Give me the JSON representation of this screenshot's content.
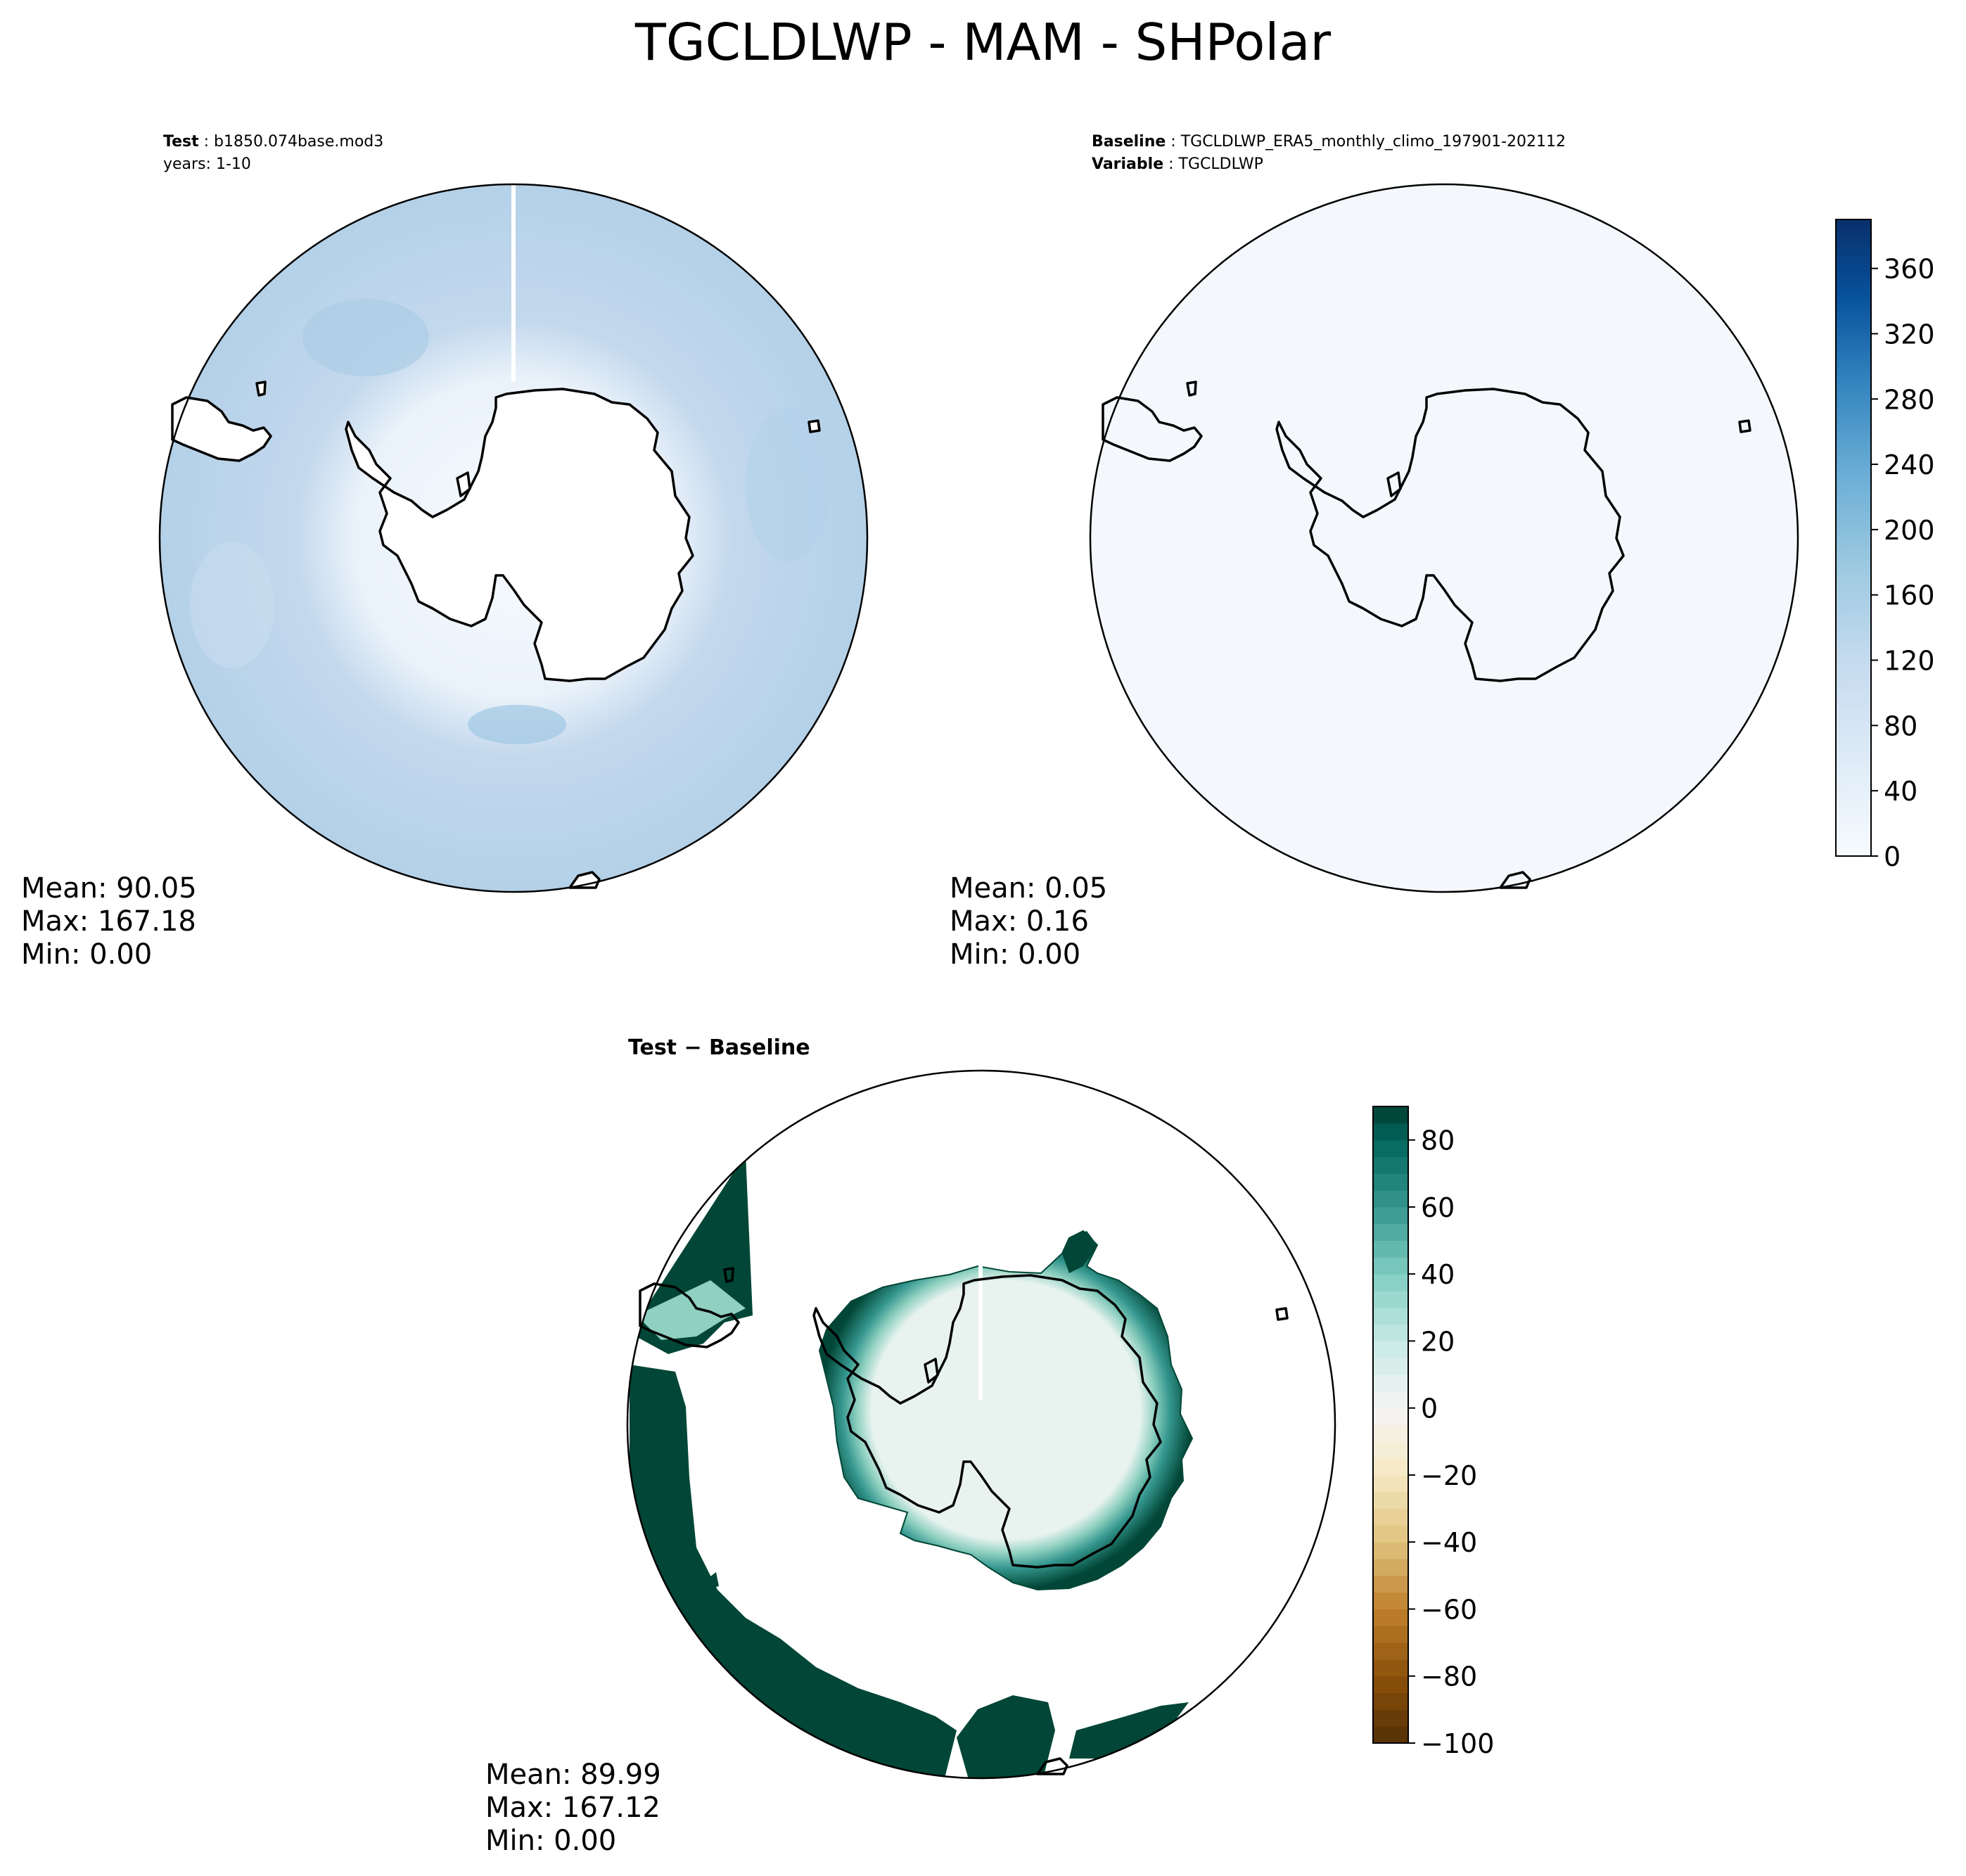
{
  "title": "TGCLDLWP - MAM - SHPolar",
  "test_panel": {
    "case_label": "Test",
    "case_value": "b1850.074base.mod3",
    "years_text": "years: 1-10",
    "stats": {
      "mean": "Mean: 90.05",
      "max": "Max: 167.18",
      "min": "Min:  0.00"
    }
  },
  "baseline_panel": {
    "case_label": "Baseline",
    "case_value": "TGCLDLWP_ERA5_monthly_climo_197901-202112",
    "variable_label": "Variable",
    "variable_value": "TGCLDLWP",
    "stats": {
      "mean": "Mean:  0.05",
      "max": "Max:  0.16",
      "min": "Min:  0.00"
    }
  },
  "diff_panel": {
    "title": "Test − Baseline",
    "stats": {
      "mean": "Mean: 89.99",
      "max": "Max: 167.12",
      "min": "Min:  0.00"
    }
  },
  "colorbar_main": {
    "colormap": "Blues",
    "range": [
      0,
      390
    ],
    "ticks": [
      "0",
      "40",
      "80",
      "120",
      "160",
      "200",
      "240",
      "280",
      "320",
      "360"
    ]
  },
  "colorbar_diff": {
    "colormap": "BrBG",
    "range": [
      -100,
      90
    ],
    "ticks": [
      "−100",
      "−80",
      "−60",
      "−40",
      "−20",
      "0",
      "20",
      "40",
      "60",
      "80"
    ]
  },
  "colors": {
    "test_field": "#c3d8ed",
    "baseline_field": "#f4f8fc",
    "diff_positive": "#014636",
    "diff_near_zero": "#e8f3ef",
    "coastline": "#000000"
  }
}
